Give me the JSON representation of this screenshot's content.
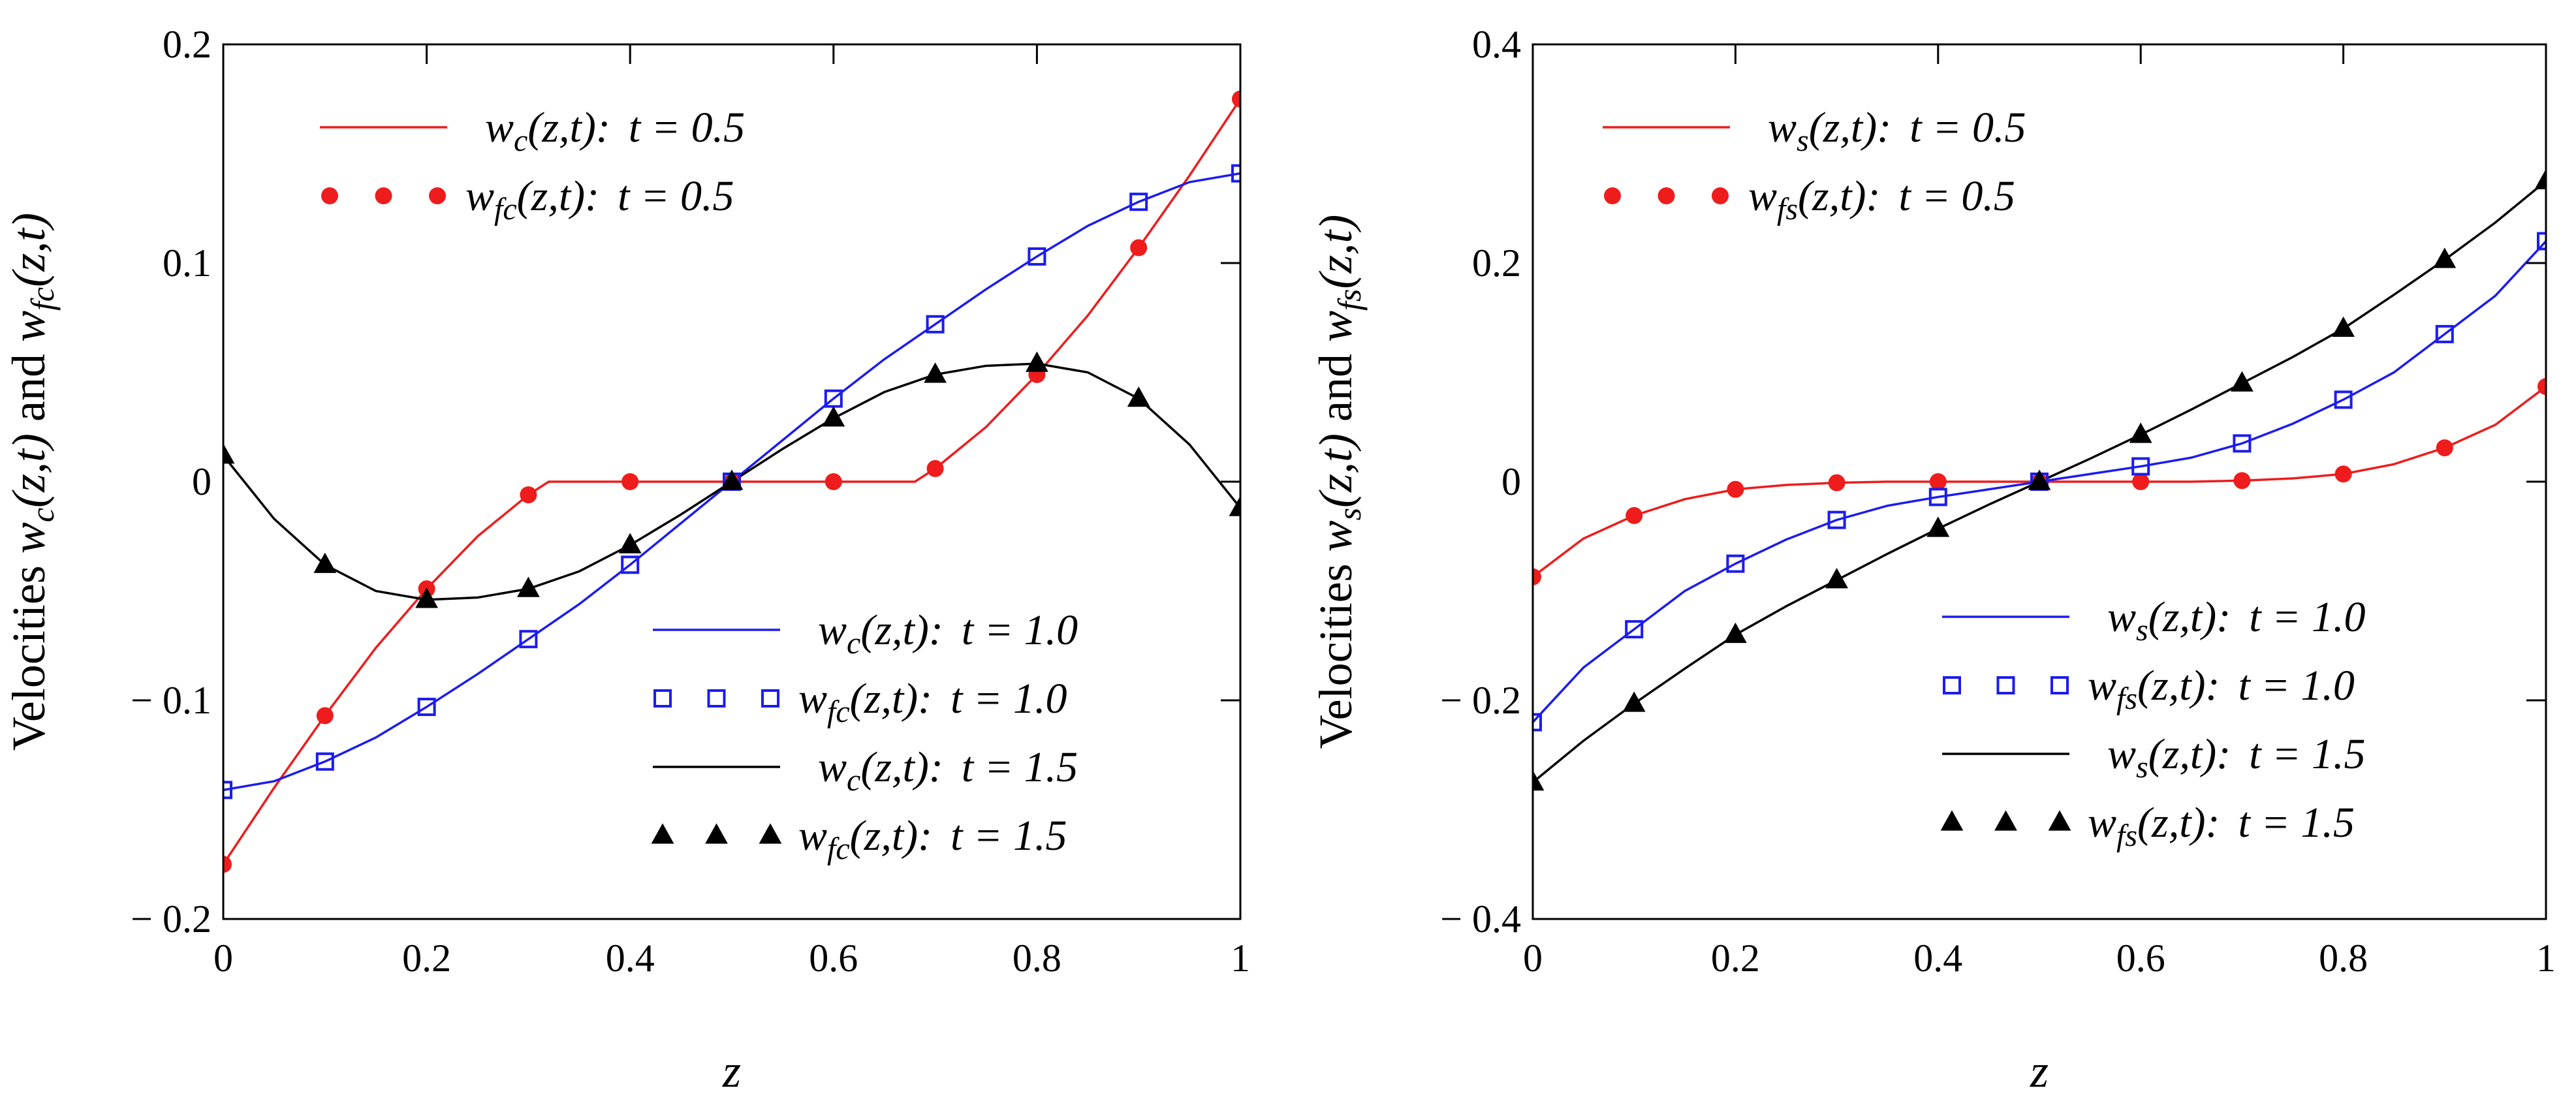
{
  "chart_data": [
    {
      "type": "line",
      "panel": "left",
      "xlabel": "z",
      "ylabel_parts": [
        "Velocities ",
        "w",
        "c",
        "(z,t)",
        " and ",
        "w",
        "fc",
        "(z,t)"
      ],
      "xlim": [
        0,
        1
      ],
      "ylim": [
        -0.2,
        0.2
      ],
      "x_ticks": [
        0,
        0.2,
        0.4,
        0.6,
        0.8,
        1
      ],
      "x_tick_labels": [
        "0",
        "0.2",
        "0.4",
        "0.6",
        "0.8",
        "1"
      ],
      "y_ticks": [
        -0.2,
        -0.1,
        0,
        0.1,
        0.2
      ],
      "y_tick_labels": [
        "− 0.2",
        "− 0.1",
        "0",
        "0.1",
        "0.2"
      ],
      "grid": false,
      "series": [
        {
          "key": "wc05",
          "kind": "line",
          "color": "#ee1c1c",
          "sym": "w",
          "sub": "c",
          "rest": "(z,t):",
          "tval": "t = 0.5",
          "x": [
            0,
            0.05,
            0.1,
            0.15,
            0.2,
            0.25,
            0.3,
            0.32,
            0.35,
            0.4,
            0.5,
            0.6,
            0.65,
            0.68,
            0.7,
            0.75,
            0.8,
            0.85,
            0.9,
            0.95,
            1
          ],
          "y": [
            -0.175,
            -0.14,
            -0.107,
            -0.076,
            -0.049,
            -0.025,
            -0.006,
            0,
            0,
            0,
            0,
            0,
            0,
            0,
            0.006,
            0.025,
            0.049,
            0.076,
            0.107,
            0.14,
            0.175
          ]
        },
        {
          "key": "wfc05",
          "kind": "markers",
          "marker": "circle",
          "color": "#ee1c1c",
          "sym": "w",
          "sub": "fc",
          "rest": "(z,t):",
          "tval": "t = 0.5",
          "x": [
            0,
            0.1,
            0.2,
            0.3,
            0.4,
            0.5,
            0.6,
            0.7,
            0.8,
            0.9,
            1
          ],
          "y": [
            -0.175,
            -0.107,
            -0.049,
            -0.006,
            0,
            0,
            0,
            0.006,
            0.049,
            0.107,
            0.175
          ]
        },
        {
          "key": "wc10",
          "kind": "line",
          "color": "#1c1cee",
          "sym": "w",
          "sub": "c",
          "rest": "(z,t):",
          "tval": "t = 1.0",
          "x": [
            0,
            0.05,
            0.1,
            0.15,
            0.2,
            0.25,
            0.3,
            0.35,
            0.4,
            0.45,
            0.5,
            0.55,
            0.6,
            0.65,
            0.7,
            0.75,
            0.8,
            0.85,
            0.9,
            0.95,
            1
          ],
          "y": [
            -0.141,
            -0.137,
            -0.128,
            -0.117,
            -0.103,
            -0.088,
            -0.072,
            -0.056,
            -0.038,
            -0.019,
            0,
            0.019,
            0.038,
            0.056,
            0.072,
            0.088,
            0.103,
            0.117,
            0.128,
            0.137,
            0.141
          ]
        },
        {
          "key": "wfc10",
          "kind": "markers",
          "marker": "square",
          "color": "#1c1cee",
          "sym": "w",
          "sub": "fc",
          "rest": "(z,t):",
          "tval": "t = 1.0",
          "x": [
            0,
            0.1,
            0.2,
            0.3,
            0.4,
            0.5,
            0.6,
            0.7,
            0.8,
            0.9,
            1
          ],
          "y": [
            -0.141,
            -0.128,
            -0.103,
            -0.072,
            -0.038,
            0,
            0.038,
            0.072,
            0.103,
            0.128,
            0.141
          ]
        },
        {
          "key": "wc15",
          "kind": "line",
          "color": "#000000",
          "sym": "w",
          "sub": "c",
          "rest": "(z,t):",
          "tval": "t = 1.5",
          "x": [
            0,
            0.05,
            0.1,
            0.15,
            0.2,
            0.25,
            0.3,
            0.35,
            0.4,
            0.45,
            0.5,
            0.55,
            0.6,
            0.65,
            0.7,
            0.75,
            0.8,
            0.85,
            0.9,
            0.95,
            1
          ],
          "y": [
            0.012,
            -0.017,
            -0.038,
            -0.05,
            -0.054,
            -0.053,
            -0.049,
            -0.041,
            -0.029,
            -0.015,
            0,
            0.015,
            0.029,
            0.041,
            0.049,
            0.053,
            0.054,
            0.05,
            0.038,
            0.017,
            -0.012
          ]
        },
        {
          "key": "wfc15",
          "kind": "markers",
          "marker": "triangle",
          "color": "#000000",
          "sym": "w",
          "sub": "fc",
          "rest": "(z,t):",
          "tval": "t = 1.5",
          "x": [
            0,
            0.1,
            0.2,
            0.3,
            0.4,
            0.5,
            0.6,
            0.7,
            0.8,
            0.9,
            1
          ],
          "y": [
            0.012,
            -0.038,
            -0.054,
            -0.049,
            -0.029,
            0,
            0.029,
            0.049,
            0.054,
            0.038,
            -0.012
          ]
        }
      ],
      "legends": [
        {
          "position": "top-left",
          "keys": [
            "wc05",
            "wfc05"
          ]
        },
        {
          "position": "bottom-right",
          "keys": [
            "wc10",
            "wfc10",
            "wc15",
            "wfc15"
          ]
        }
      ]
    },
    {
      "type": "line",
      "panel": "right",
      "xlabel": "z",
      "ylabel_parts": [
        "Velocities ",
        "w",
        "s",
        "(z,t)",
        " and ",
        "w",
        "fs",
        "(z,t)"
      ],
      "xlim": [
        0,
        1
      ],
      "ylim": [
        -0.4,
        0.4
      ],
      "x_ticks": [
        0,
        0.2,
        0.4,
        0.6,
        0.8,
        1
      ],
      "x_tick_labels": [
        "0",
        "0.2",
        "0.4",
        "0.6",
        "0.8",
        "1"
      ],
      "y_ticks": [
        -0.4,
        -0.2,
        0,
        0.2,
        0.4
      ],
      "y_tick_labels": [
        "− 0.4",
        "− 0.2",
        "0",
        "0.2",
        "0.4"
      ],
      "grid": false,
      "series": [
        {
          "key": "ws05",
          "kind": "line",
          "color": "#ee1c1c",
          "sym": "w",
          "sub": "s",
          "rest": "(z,t):",
          "tval": "t = 0.5",
          "x": [
            0,
            0.05,
            0.1,
            0.15,
            0.2,
            0.25,
            0.3,
            0.35,
            0.4,
            0.45,
            0.5,
            0.55,
            0.6,
            0.65,
            0.7,
            0.75,
            0.8,
            0.85,
            0.9,
            0.95,
            1
          ],
          "y": [
            -0.087,
            -0.052,
            -0.031,
            -0.016,
            -0.007,
            -0.003,
            -0.001,
            0,
            0,
            0,
            0,
            0,
            0,
            0,
            0.001,
            0.003,
            0.007,
            0.016,
            0.031,
            0.052,
            0.087
          ]
        },
        {
          "key": "wfs05",
          "kind": "markers",
          "marker": "circle",
          "color": "#ee1c1c",
          "sym": "w",
          "sub": "fs",
          "rest": "(z,t):",
          "tval": "t = 0.5",
          "x": [
            0,
            0.1,
            0.2,
            0.3,
            0.4,
            0.5,
            0.6,
            0.7,
            0.8,
            0.9,
            1
          ],
          "y": [
            -0.087,
            -0.031,
            -0.007,
            -0.001,
            0,
            0,
            0,
            0.001,
            0.007,
            0.031,
            0.087
          ]
        },
        {
          "key": "ws10",
          "kind": "line",
          "color": "#1c1cee",
          "sym": "w",
          "sub": "s",
          "rest": "(z,t):",
          "tval": "t = 1.0",
          "x": [
            0,
            0.05,
            0.1,
            0.15,
            0.2,
            0.25,
            0.3,
            0.35,
            0.4,
            0.45,
            0.5,
            0.55,
            0.6,
            0.65,
            0.7,
            0.75,
            0.8,
            0.85,
            0.9,
            0.95,
            1
          ],
          "y": [
            -0.22,
            -0.17,
            -0.135,
            -0.1,
            -0.075,
            -0.053,
            -0.035,
            -0.022,
            -0.014,
            -0.007,
            0,
            0.007,
            0.014,
            0.022,
            0.035,
            0.053,
            0.075,
            0.1,
            0.135,
            0.17,
            0.22
          ]
        },
        {
          "key": "wfs10",
          "kind": "markers",
          "marker": "square",
          "color": "#1c1cee",
          "sym": "w",
          "sub": "fs",
          "rest": "(z,t):",
          "tval": "t = 1.0",
          "x": [
            0,
            0.1,
            0.2,
            0.3,
            0.4,
            0.5,
            0.6,
            0.7,
            0.8,
            0.9,
            1
          ],
          "y": [
            -0.22,
            -0.135,
            -0.075,
            -0.035,
            -0.014,
            0,
            0.014,
            0.035,
            0.075,
            0.135,
            0.22
          ]
        },
        {
          "key": "ws15",
          "kind": "line",
          "color": "#000000",
          "sym": "w",
          "sub": "s",
          "rest": "(z,t):",
          "tval": "t = 1.5",
          "x": [
            0,
            0.05,
            0.1,
            0.15,
            0.2,
            0.25,
            0.3,
            0.35,
            0.4,
            0.45,
            0.5,
            0.55,
            0.6,
            0.65,
            0.7,
            0.75,
            0.8,
            0.85,
            0.9,
            0.95,
            1
          ],
          "y": [
            -0.275,
            -0.237,
            -0.203,
            -0.171,
            -0.14,
            -0.114,
            -0.09,
            -0.066,
            -0.043,
            -0.021,
            0,
            0.021,
            0.043,
            0.066,
            0.09,
            0.114,
            0.14,
            0.171,
            0.203,
            0.237,
            0.275
          ]
        },
        {
          "key": "wfs15",
          "kind": "markers",
          "marker": "triangle",
          "color": "#000000",
          "sym": "w",
          "sub": "fs",
          "rest": "(z,t):",
          "tval": "t = 1.5",
          "x": [
            0,
            0.1,
            0.2,
            0.3,
            0.4,
            0.5,
            0.6,
            0.7,
            0.8,
            0.9,
            1
          ],
          "y": [
            -0.275,
            -0.203,
            -0.14,
            -0.09,
            -0.043,
            0,
            0.043,
            0.09,
            0.14,
            0.203,
            0.275
          ]
        }
      ],
      "legends": [
        {
          "position": "top-left",
          "keys": [
            "ws05",
            "wfs05"
          ]
        },
        {
          "position": "bottom-right",
          "keys": [
            "ws10",
            "wfs10",
            "ws15",
            "wfs15"
          ]
        }
      ]
    }
  ]
}
